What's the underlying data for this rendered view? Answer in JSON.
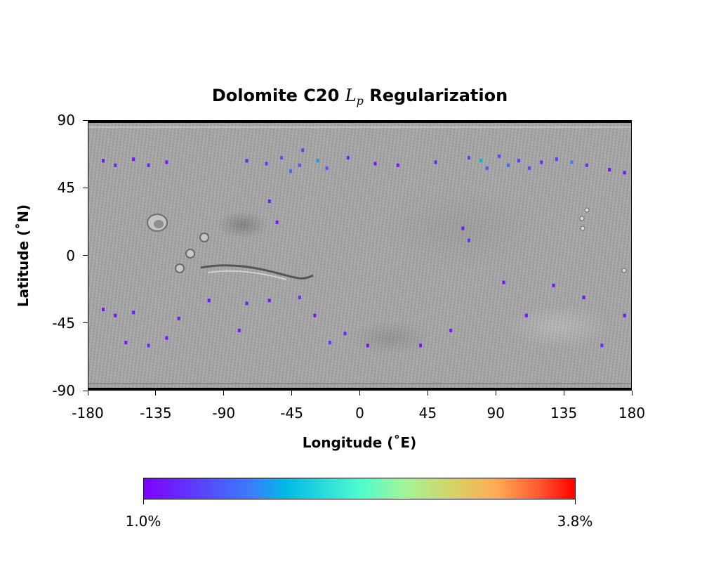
{
  "chart_data": {
    "type": "heatmap",
    "title": "Dolomite C20",
    "title_math": "L",
    "title_math_sub": "p",
    "title_suffix": "Regularization",
    "xlabel": "Longitude (˚E)",
    "ylabel": "Latitude (˚N)",
    "xlim": [
      -180,
      180
    ],
    "ylim": [
      -90,
      90
    ],
    "xticks": [
      "-180",
      "-135",
      "-90",
      "-45",
      "0",
      "45",
      "90",
      "135",
      "180"
    ],
    "yticks": [
      "90",
      "45",
      "0",
      "-45",
      "-90"
    ],
    "background": "shaded-relief basemap (grayscale)",
    "colormap": "rainbow",
    "colorbar": {
      "min_label": "1.0%",
      "max_label": "3.8%",
      "min": 1.0,
      "max": 3.8,
      "orientation": "horizontal",
      "placement": "bottom"
    },
    "points": [
      {
        "lon": -170,
        "lat": 63,
        "v": 1.1
      },
      {
        "lon": -162,
        "lat": 60,
        "v": 1.2
      },
      {
        "lon": -150,
        "lat": 64,
        "v": 1.1
      },
      {
        "lon": -140,
        "lat": 60,
        "v": 1.2
      },
      {
        "lon": -128,
        "lat": 62,
        "v": 1.1
      },
      {
        "lon": -75,
        "lat": 63,
        "v": 1.2
      },
      {
        "lon": -62,
        "lat": 61,
        "v": 1.3
      },
      {
        "lon": -52,
        "lat": 65,
        "v": 1.4
      },
      {
        "lon": -46,
        "lat": 56,
        "v": 1.6
      },
      {
        "lon": -40,
        "lat": 60,
        "v": 1.5
      },
      {
        "lon": -38,
        "lat": 70,
        "v": 1.3
      },
      {
        "lon": -28,
        "lat": 63,
        "v": 1.8
      },
      {
        "lon": -22,
        "lat": 58,
        "v": 1.5
      },
      {
        "lon": -8,
        "lat": 65,
        "v": 1.2
      },
      {
        "lon": 10,
        "lat": 61,
        "v": 1.1
      },
      {
        "lon": 25,
        "lat": 60,
        "v": 1.1
      },
      {
        "lon": 50,
        "lat": 62,
        "v": 1.2
      },
      {
        "lon": 72,
        "lat": 65,
        "v": 1.3
      },
      {
        "lon": 80,
        "lat": 63,
        "v": 1.9
      },
      {
        "lon": 84,
        "lat": 58,
        "v": 1.5
      },
      {
        "lon": 92,
        "lat": 66,
        "v": 1.4
      },
      {
        "lon": 98,
        "lat": 60,
        "v": 1.6
      },
      {
        "lon": 105,
        "lat": 63,
        "v": 1.3
      },
      {
        "lon": 112,
        "lat": 58,
        "v": 1.4
      },
      {
        "lon": 120,
        "lat": 62,
        "v": 1.2
      },
      {
        "lon": 130,
        "lat": 64,
        "v": 1.3
      },
      {
        "lon": 140,
        "lat": 62,
        "v": 1.7
      },
      {
        "lon": 150,
        "lat": 60,
        "v": 1.2
      },
      {
        "lon": 165,
        "lat": 57,
        "v": 1.1
      },
      {
        "lon": -60,
        "lat": 36,
        "v": 1.1
      },
      {
        "lon": 68,
        "lat": 18,
        "v": 1.1
      },
      {
        "lon": 72,
        "lat": 10,
        "v": 1.2
      },
      {
        "lon": -100,
        "lat": -30,
        "v": 1.1
      },
      {
        "lon": 95,
        "lat": -18,
        "v": 1.1
      },
      {
        "lon": 128,
        "lat": -20,
        "v": 1.1
      },
      {
        "lon": 148,
        "lat": -28,
        "v": 1.1
      },
      {
        "lon": -170,
        "lat": -36,
        "v": 1.1
      },
      {
        "lon": -162,
        "lat": -40,
        "v": 1.1
      },
      {
        "lon": -150,
        "lat": -38,
        "v": 1.2
      },
      {
        "lon": -120,
        "lat": -42,
        "v": 1.1
      },
      {
        "lon": -80,
        "lat": -50,
        "v": 1.1
      },
      {
        "lon": -60,
        "lat": -30,
        "v": 1.1
      },
      {
        "lon": -40,
        "lat": -28,
        "v": 1.2
      },
      {
        "lon": -20,
        "lat": -58,
        "v": 1.3
      },
      {
        "lon": -10,
        "lat": -52,
        "v": 1.2
      },
      {
        "lon": 5,
        "lat": -60,
        "v": 1.1
      },
      {
        "lon": -155,
        "lat": -58,
        "v": 1.1
      },
      {
        "lon": -140,
        "lat": -60,
        "v": 1.2
      },
      {
        "lon": -128,
        "lat": -55,
        "v": 1.1
      },
      {
        "lon": 40,
        "lat": -60,
        "v": 1.1
      },
      {
        "lon": 160,
        "lat": -60,
        "v": 1.2
      },
      {
        "lon": 175,
        "lat": -40,
        "v": 1.1
      },
      {
        "lon": 110,
        "lat": -40,
        "v": 1.1
      },
      {
        "lon": 60,
        "lat": -50,
        "v": 1.1
      },
      {
        "lon": 175,
        "lat": 55,
        "v": 1.1
      },
      {
        "lon": -55,
        "lat": 22,
        "v": 1.1
      },
      {
        "lon": -75,
        "lat": -32,
        "v": 1.2
      },
      {
        "lon": -30,
        "lat": -40,
        "v": 1.1
      }
    ]
  }
}
